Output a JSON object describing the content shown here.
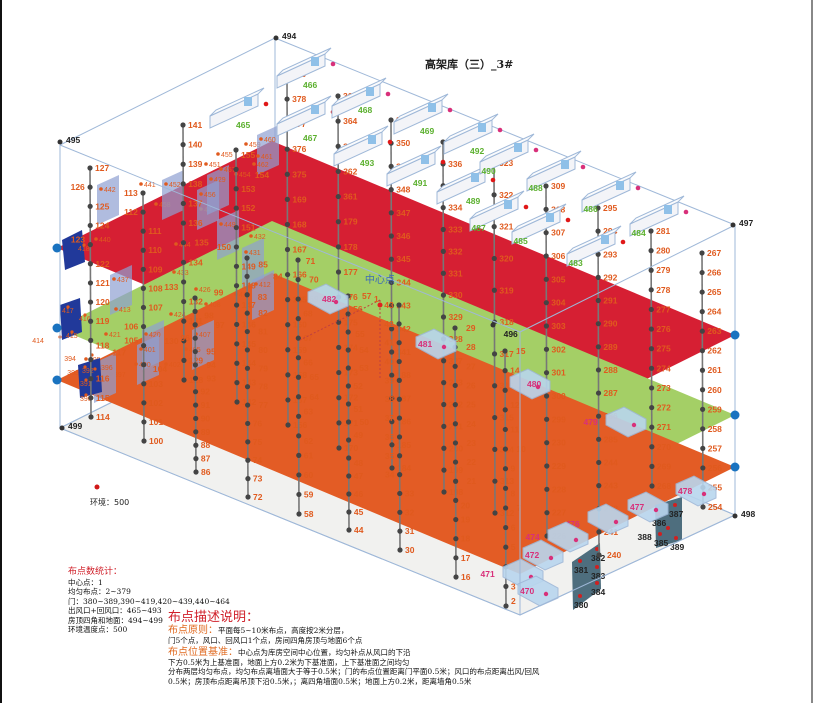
{
  "title": "高架库（三）_3#",
  "colors": {
    "top_plane": "#d61f33",
    "mid_plane": "#a4cf66",
    "bottom_plane": "#e35c25",
    "floor": "#f1f1ef",
    "box_line": "#9fb8d8",
    "label": "#e05a1e",
    "vent_label": "#5bb02e",
    "door_panel": "#8f9fd2",
    "dark_door": "#21399a",
    "gray_door": "#4e6e7e",
    "center": "#e02020",
    "corner_dot": "#1a73c0"
  },
  "corners": [
    "494",
    "495",
    "496",
    "497",
    "498",
    "499"
  ],
  "center": {
    "label": "中心点",
    "number": "1"
  },
  "environment": {
    "label": "环境：500"
  },
  "columns": [
    {
      "labels": [
        "127",
        "126",
        "125",
        "124",
        "123",
        "122",
        "121",
        "120",
        "119",
        "118",
        "117",
        "116",
        "115",
        "114"
      ]
    },
    {
      "labels": [
        "113",
        "112",
        "111",
        "110",
        "109",
        "108",
        "107",
        "106",
        "105",
        "104",
        "103",
        "102",
        "101",
        "100"
      ]
    },
    {
      "labels": [
        "141",
        "140",
        "139",
        "138",
        "137",
        "136",
        "135",
        "134",
        "133",
        "132",
        "131",
        "130",
        "129",
        "128"
      ]
    },
    {
      "labels": [
        "99",
        "98",
        "97",
        "96",
        "95",
        "94",
        "93",
        "92",
        "91",
        "90",
        "89",
        "88",
        "87",
        "86"
      ]
    },
    {
      "labels": [
        "155",
        "154",
        "153",
        "152",
        "151",
        "150",
        "149",
        "148",
        "147",
        "146",
        "145",
        "144",
        "143",
        "142"
      ]
    },
    {
      "labels": [
        "85",
        "84",
        "83",
        "82",
        "81",
        "80",
        "79",
        "78",
        "77",
        "76",
        "75",
        "74",
        "73",
        "72"
      ]
    },
    {
      "labels": [
        "379",
        "378",
        "377",
        "376",
        "375",
        "169",
        "168",
        "167",
        "166",
        "165",
        "160",
        "159",
        "158",
        "157",
        "156"
      ]
    },
    {
      "labels": [
        "71",
        "70",
        "69",
        "68",
        "67",
        "66",
        "65",
        "64",
        "63",
        "62",
        "61",
        "60",
        "59",
        "58"
      ]
    },
    {
      "labels": [
        "365",
        "364",
        "363",
        "362",
        "361",
        "179",
        "178",
        "177",
        "176",
        "175",
        "174",
        "173",
        "172",
        "171",
        "170"
      ]
    },
    {
      "labels": [
        "57",
        "56",
        "55",
        "54",
        "53",
        "52",
        "51",
        "50",
        "49",
        "48",
        "47",
        "46",
        "45",
        "44"
      ]
    },
    {
      "labels": [
        "351",
        "350",
        "349",
        "348",
        "347",
        "346",
        "345",
        "344",
        "343",
        "342",
        "341",
        "188",
        "187",
        "186",
        "185",
        "184"
      ]
    },
    {
      "labels": [
        "43",
        "42",
        "41",
        "40",
        "39",
        "38",
        "37",
        "36",
        "35",
        "34",
        "33",
        "32",
        "31",
        "30"
      ]
    },
    {
      "labels": [
        "337",
        "336",
        "335",
        "334",
        "333",
        "332",
        "331",
        "330",
        "329",
        "328",
        "327",
        "203",
        "202",
        "201",
        "200",
        "199",
        "198"
      ]
    },
    {
      "labels": [
        "29",
        "28",
        "27",
        "26",
        "25",
        "24",
        "23",
        "22",
        "21",
        "20",
        "19",
        "18",
        "17",
        "16"
      ]
    },
    {
      "labels": [
        "323",
        "322",
        "321",
        "320",
        "319",
        "318",
        "317",
        "316",
        "315",
        "314",
        "313",
        "312"
      ]
    },
    {
      "labels": [
        "15",
        "14",
        "13",
        "12",
        "11",
        "10",
        "9",
        "8",
        "7",
        "6",
        "5",
        "4",
        "3",
        "2"
      ]
    },
    {
      "labels": [
        "309",
        "308",
        "307",
        "306",
        "305",
        "304",
        "303",
        "302",
        "301",
        "300",
        "299",
        "230",
        "229",
        "228",
        "227",
        "226"
      ]
    },
    {
      "labels": [
        "295",
        "294",
        "293",
        "292",
        "291",
        "290",
        "289",
        "288",
        "287",
        "286",
        "285",
        "244",
        "243",
        "242",
        "241",
        "240"
      ]
    },
    {
      "labels": [
        "281",
        "280",
        "279",
        "278",
        "277",
        "276",
        "275",
        "274",
        "273",
        "272",
        "271",
        "270",
        "269",
        "268"
      ]
    },
    {
      "labels": [
        "267",
        "266",
        "265",
        "264",
        "263",
        "262",
        "261",
        "260",
        "259",
        "258",
        "257",
        "256",
        "255",
        "254"
      ]
    }
  ],
  "return_vents": [
    "465",
    "466",
    "467",
    "468",
    "493",
    "469",
    "491",
    "492",
    "489",
    "490",
    "487",
    "488",
    "485",
    "486",
    "483",
    "484"
  ],
  "supply_vents": [
    "482",
    "481",
    "480",
    "479",
    "478",
    "477",
    "476",
    "474",
    "472",
    "471",
    "470"
  ],
  "doors": [
    "442",
    "441",
    "447",
    "449",
    "444",
    "440",
    "437",
    "433",
    "421",
    "420",
    "424",
    "426",
    "429",
    "457",
    "458",
    "452",
    "451",
    "455",
    "456",
    "454",
    "459",
    "460",
    "461",
    "462",
    "431",
    "432",
    "413",
    "412",
    "411",
    "408",
    "407",
    "405",
    "402",
    "401",
    "400",
    "397",
    "396",
    "395"
  ],
  "dark_doors": [
    "418",
    "417",
    "416",
    "415",
    "414",
    "393",
    "392",
    "391",
    "390",
    "394"
  ],
  "gray_doors": [
    "380",
    "381",
    "382",
    "383",
    "384",
    "385",
    "386",
    "387",
    "388",
    "389"
  ],
  "stats": {
    "heading": "布点数统计：",
    "lines": [
      "中心点：1",
      "均匀布点：2~379",
      "门：380~389,390~419,420~439,440~464",
      "出风口+回风口：465~493",
      "房顶四角和地面：494~499",
      "环境温度点：500"
    ]
  },
  "description": {
    "heading": "布点描述说明：",
    "principle_heading": "布点原则：",
    "principle_text": "平面每5~10米布点，高度按2米分层，",
    "principle_text2": "门5个点，风口、回风口1个点，房间四角房顶与地面6个点",
    "basis_heading": "布点位置基准：",
    "basis_text": "中心点为库房空间中心位置，均匀补点从风口的下沿",
    "basis_lines": [
      "下方0.5米为上基准面，地面上方0.2米为下基准面，上下基准面之间均匀",
      "分布两层均匀布点，均匀布点离墙面大于等于0.5米；门的布点位置距离门平面0.5米；风口的布点距离出风/回风",
      "0.5米；房顶布点距离吊顶下沿0.5米，；离四角墙面0.5米；地面上方0.2米，距离墙角0.5米"
    ]
  }
}
